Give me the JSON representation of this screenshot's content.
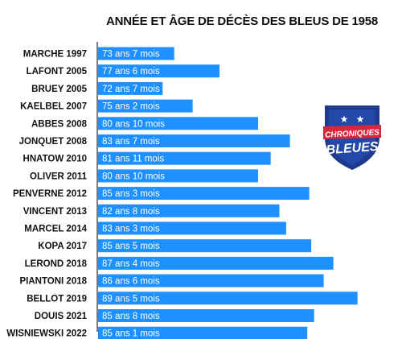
{
  "colors": {
    "bar": "#1e90ff",
    "axis": "#222222",
    "label_text": "#111111",
    "bar_text": "#ffffff",
    "logo_blue": "#1f3a8a",
    "logo_red": "#d6283a"
  },
  "logo": {
    "line1": "CHRONIQUES",
    "line2": "BLEUES",
    "icon": "shield-stars-icon"
  },
  "chart_data": {
    "type": "bar",
    "orientation": "horizontal",
    "title": "ANNÉE ET ÂGE DE DÉCÈS DES BLEUS DE 1958",
    "xlabel": "",
    "ylabel": "",
    "xlim": [
      67,
      90
    ],
    "grid": false,
    "categories": [
      "MARCHE 1997",
      "LAFONT 2005",
      "BRUEY 2005",
      "KAELBEL 2007",
      "ABBES 2008",
      "JONQUET 2008",
      "HNATOW 2010",
      "OLIVER 2011",
      "PENVERNE 2012",
      "VINCENT 2013",
      "MARCEL 2014",
      "KOPA 2017",
      "LEROND 2018",
      "PIANTONI 2018",
      "BELLOT 2019",
      "DOUIS 2021",
      "WISNIEWSKI 2022"
    ],
    "labels": [
      "73 ans 7 mois",
      "77 ans 6 mois",
      "72 ans 7 mois",
      "75 ans 2 mois",
      "80 ans 10 mois",
      "83 ans 7 mois",
      "81 ans 11 mois",
      "80 ans 10 mois",
      "85 ans 3 mois",
      "82 ans 8 mois",
      "83 ans 3 mois",
      "85 ans 5 mois",
      "87 ans 4 mois",
      "86 ans 6 mois",
      "89 ans 5 mois",
      "85 ans 8 mois",
      "85 ans 1 mois"
    ],
    "values": [
      73.58,
      77.5,
      72.58,
      75.17,
      80.83,
      83.58,
      81.92,
      80.83,
      85.25,
      82.67,
      83.25,
      85.42,
      87.33,
      86.5,
      89.42,
      85.67,
      85.08
    ]
  }
}
